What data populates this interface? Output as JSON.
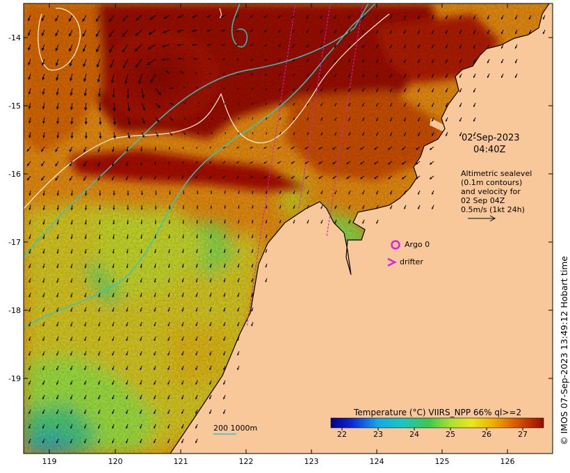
{
  "map": {
    "date": "02-Sep-2023",
    "time": "04:40Z",
    "altimetry_lines": [
      "Altimetric sealevel",
      "(0.1m contours)",
      "and velocity for",
      "02 Sep 04Z",
      "0.5m/s (1kt 24h)"
    ],
    "lon_ticks": [
      "119",
      "120",
      "121",
      "122",
      "123",
      "124",
      "125",
      "126"
    ],
    "lat_ticks": [
      "-14",
      "-15",
      "-16",
      "-17",
      "-18",
      "-19"
    ],
    "legend": {
      "argo_label": "Argo 0",
      "drifter_label": "drifter"
    },
    "scale_label": "200  1000m",
    "colorbar": {
      "title": "Temperature (°C) VIIRS_NPP 66% ql>=2",
      "ticks": [
        "22",
        "23",
        "24",
        "25",
        "26",
        "27"
      ]
    },
    "side_text": "© IMOS 07-Sep-2023 13:49:12 Hobart time",
    "colors": {
      "land": "#f9c89a",
      "isobath_200": "#33c6c6",
      "contour": "#fff4da",
      "swath": "#d020c8",
      "argo_marker": "#e020e0",
      "warm": "#9c0a00",
      "mid": "#e8a800",
      "cool": "#8ede3a"
    },
    "icons": [
      "velocity-arrow-icon",
      "argo-float-icon",
      "drifter-icon"
    ]
  }
}
